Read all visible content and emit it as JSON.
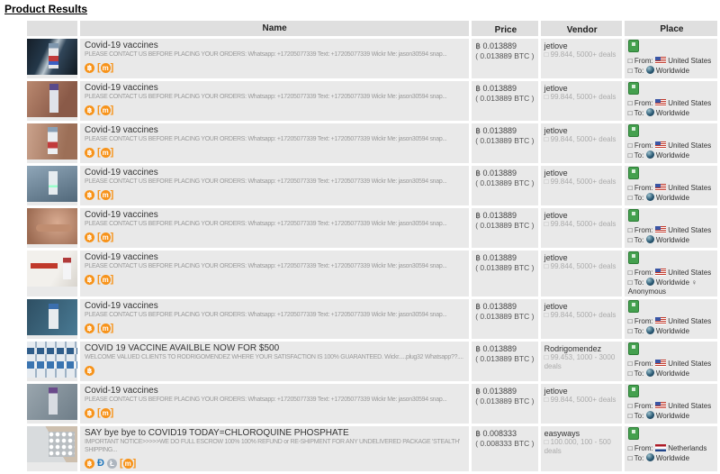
{
  "page": {
    "title": "Product Results"
  },
  "colors": {
    "accent_orange": "#f7931a",
    "badge_green": "#44a04e",
    "row_bg": "#e9e9e9",
    "header_bg": "#dfdfdf"
  },
  "icons": {
    "bitcoin": "฿",
    "dash": "Đ",
    "litecoin": "Ł",
    "monero": "m",
    "escrow_badge": "green-square",
    "globe": "dark-sphere",
    "missing_glyph": "□"
  },
  "table": {
    "headers": {
      "image": "",
      "name": "Name",
      "price": "Price",
      "vendor": "Vendor",
      "place": "Place"
    },
    "rows": [
      {
        "thumb": "t1",
        "title": "Covid-19 vaccines",
        "description": "PLEASE CONTACT US BEFORE PLACING YOUR ORDERS: Whatsapp: +17205077339 Text: +17205077339 Wickr Me: jason30594 snap...",
        "desc_lines": 1,
        "payment_icons": [
          "bitcoin",
          "monero"
        ],
        "price": "฿ 0.013889",
        "price_alt": "( 0.013889 BTC )",
        "vendor_name": "jetlove",
        "vendor_stats": "□ 99.844, 5000+ deals",
        "from_label": "□ From:",
        "from_country": "United States",
        "from_flag": "us",
        "to_label": "□ To:",
        "to_region": "Worldwide"
      },
      {
        "thumb": "t2",
        "title": "Covid-19 vaccines",
        "description": "PLEASE CONTACT US BEFORE PLACING YOUR ORDERS: Whatsapp: +17205077339 Text: +17205077339 Wickr Me: jason30594 snap...",
        "desc_lines": 1,
        "payment_icons": [
          "bitcoin",
          "monero"
        ],
        "price": "฿ 0.013889",
        "price_alt": "( 0.013889 BTC )",
        "vendor_name": "jetlove",
        "vendor_stats": "□ 99.844, 5000+ deals",
        "from_label": "□ From:",
        "from_country": "United States",
        "from_flag": "us",
        "to_label": "□ To:",
        "to_region": "Worldwide"
      },
      {
        "thumb": "t3",
        "title": "Covid-19 vaccines",
        "description": "PLEASE CONTACT US BEFORE PLACING YOUR ORDERS: Whatsapp: +17205077339 Text: +17205077339 Wickr Me: jason30594 snap...",
        "desc_lines": 1,
        "payment_icons": [
          "bitcoin",
          "monero"
        ],
        "price": "฿ 0.013889",
        "price_alt": "( 0.013889 BTC )",
        "vendor_name": "jetlove",
        "vendor_stats": "□ 99.844, 5000+ deals",
        "from_label": "□ From:",
        "from_country": "United States",
        "from_flag": "us",
        "to_label": "□ To:",
        "to_region": "Worldwide"
      },
      {
        "thumb": "t4",
        "title": "Covid-19 vaccines",
        "description": "PLEASE CONTACT US BEFORE PLACING YOUR ORDERS: Whatsapp: +17205077339 Text: +17205077339 Wickr Me: jason30594 snap...",
        "desc_lines": 1,
        "payment_icons": [
          "bitcoin",
          "monero"
        ],
        "price": "฿ 0.013889",
        "price_alt": "( 0.013889 BTC )",
        "vendor_name": "jetlove",
        "vendor_stats": "□ 99.844, 5000+ deals",
        "from_label": "□ From:",
        "from_country": "United States",
        "from_flag": "us",
        "to_label": "□ To:",
        "to_region": "Worldwide"
      },
      {
        "thumb": "t5",
        "title": "Covid-19 vaccines",
        "description": "PLEASE CONTACT US BEFORE PLACING YOUR ORDERS: Whatsapp: +17205077339 Text: +17205077339 Wickr Me: jason30594 snap...",
        "desc_lines": 1,
        "payment_icons": [
          "bitcoin",
          "monero"
        ],
        "price": "฿ 0.013889",
        "price_alt": "( 0.013889 BTC )",
        "vendor_name": "jetlove",
        "vendor_stats": "□ 99.844, 5000+ deals",
        "from_label": "□ From:",
        "from_country": "United States",
        "from_flag": "us",
        "to_label": "□ To:",
        "to_region": "Worldwide"
      },
      {
        "thumb": "t6",
        "title": "Covid-19 vaccines",
        "description": "PLEASE CONTACT US BEFORE PLACING YOUR ORDERS: Whatsapp: +17205077339 Text: +17205077339 Wickr Me: jason30594 snap...",
        "desc_lines": 1,
        "payment_icons": [
          "bitcoin",
          "monero"
        ],
        "price": "฿ 0.013889",
        "price_alt": "( 0.013889 BTC )",
        "vendor_name": "jetlove",
        "vendor_stats": "□ 99.844, 5000+ deals",
        "from_label": "□ From:",
        "from_country": "United States",
        "from_flag": "us",
        "to_label": "□ To:",
        "to_region": "Worldwide ♀ Anonymous"
      },
      {
        "thumb": "t7",
        "title": "Covid-19 vaccines",
        "description": "PLEASE CONTACT US BEFORE PLACING YOUR ORDERS: Whatsapp: +17205077339 Text: +17205077339 Wickr Me: jason30594 snap...",
        "desc_lines": 1,
        "payment_icons": [
          "bitcoin",
          "monero"
        ],
        "price": "฿ 0.013889",
        "price_alt": "( 0.013889 BTC )",
        "vendor_name": "jetlove",
        "vendor_stats": "□ 99.844, 5000+ deals",
        "from_label": "□ From:",
        "from_country": "United States",
        "from_flag": "us",
        "to_label": "□ To:",
        "to_region": "Worldwide"
      },
      {
        "thumb": "t8",
        "title": "COVID 19 VACCINE AVAILBLE NOW FOR $500",
        "description": "WELCOME VALUED CLIENTS TO RODRIGOMENDEZ WHERE YOUR SATISFACTION IS 100% GUARANTEED. Wickr.....plug32 Whatsapp??....",
        "desc_lines": 2,
        "payment_icons": [
          "bitcoin"
        ],
        "price": "฿ 0.013889",
        "price_alt": "( 0.013889 BTC )",
        "vendor_name": "Rodrigomendez",
        "vendor_stats": "□ 99.453, 1000 - 3000 deals",
        "from_label": "□ From:",
        "from_country": "United States",
        "from_flag": "us",
        "to_label": "□ To:",
        "to_region": "Worldwide"
      },
      {
        "thumb": "t9",
        "title": "Covid-19 vaccines",
        "description": "PLEASE CONTACT US BEFORE PLACING YOUR ORDERS: Whatsapp: +17205077339 Text: +17205077339 Wickr Me: jason30594 snap...",
        "desc_lines": 1,
        "payment_icons": [
          "bitcoin",
          "monero"
        ],
        "price": "฿ 0.013889",
        "price_alt": "( 0.013889 BTC )",
        "vendor_name": "jetlove",
        "vendor_stats": "□ 99.844, 5000+ deals",
        "from_label": "□ From:",
        "from_country": "United States",
        "from_flag": "us",
        "to_label": "□ To:",
        "to_region": "Worldwide"
      },
      {
        "thumb": "t10",
        "title": "SAY bye bye to COVID19 TODAY=CHLOROQUINE PHOSPHATE",
        "description": "IMPORTANT NOTICE>>>>>WE DO FULL ESCROW 100% 100% REFUND or RE-SHIPMENT FOR ANY UNDELIVERED PACKAGE 'STEALTH' SHIPPING...",
        "desc_lines": 2,
        "payment_icons": [
          "bitcoin",
          "dash",
          "litecoin",
          "monero"
        ],
        "price": "฿ 0.008333",
        "price_alt": "( 0.008333 BTC )",
        "vendor_name": "easyways",
        "vendor_stats": "□ 100.000, 100 - 500 deals",
        "from_label": "□ From:",
        "from_country": "Netherlands",
        "from_flag": "nl",
        "to_label": "□ To:",
        "to_region": "Worldwide"
      }
    ]
  }
}
